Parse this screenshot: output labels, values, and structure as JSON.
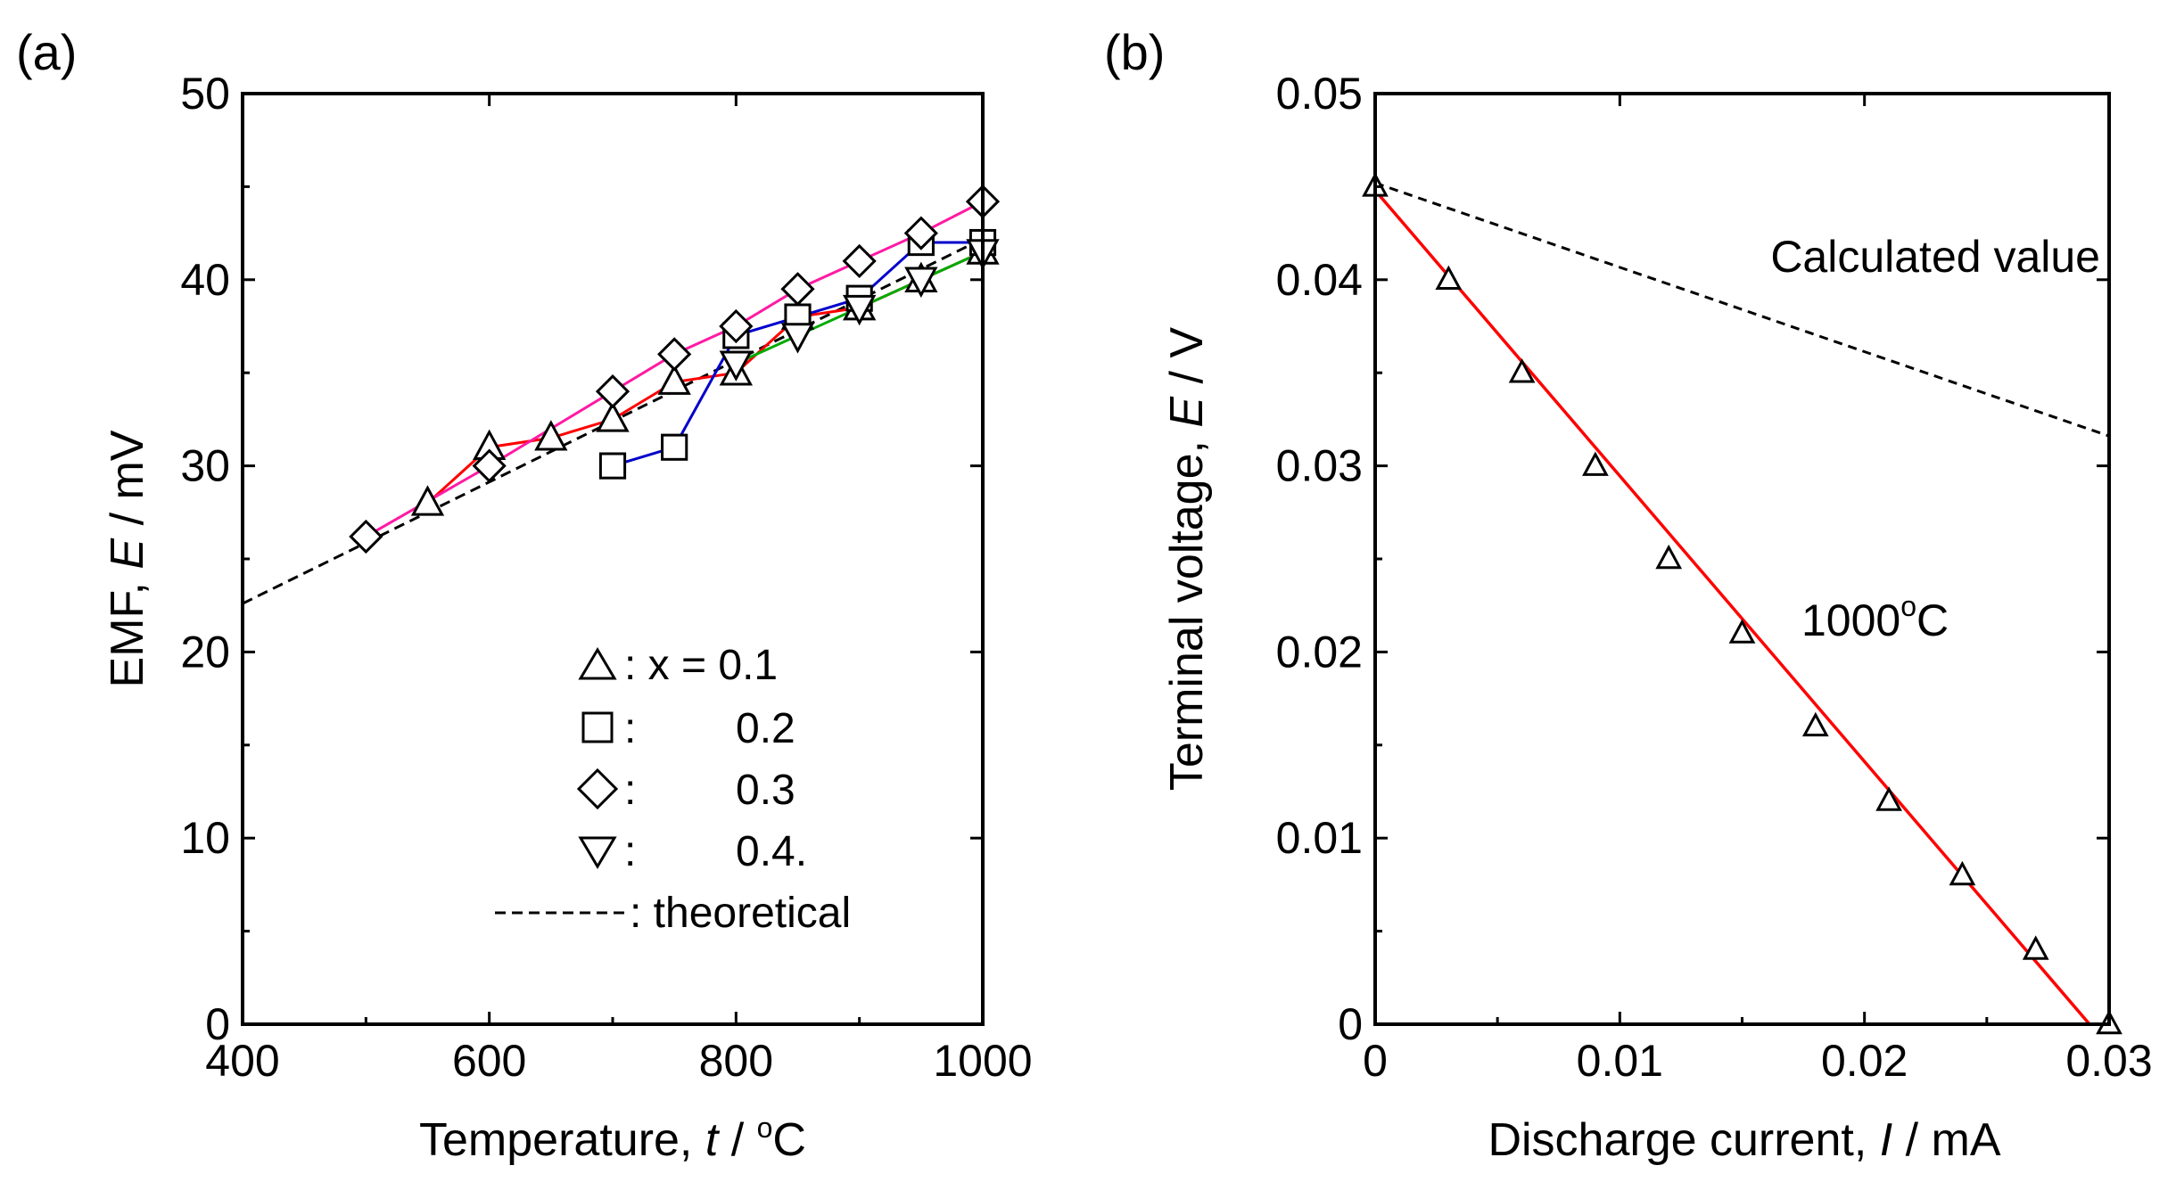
{
  "chart_data": [
    {
      "panel_label": "(a)",
      "type": "line",
      "xlabel_prefix": "Temperature, ",
      "xlabel_var": "t",
      "xlabel_sep": " / ",
      "xlabel_deg": "o",
      "xlabel_unit": "C",
      "ylabel_prefix": "EMF, ",
      "ylabel_var": "E",
      "ylabel_unit": " / mV",
      "xlim": [
        400,
        1000
      ],
      "ylim": [
        0,
        50
      ],
      "xticks": [
        400,
        600,
        800,
        1000
      ],
      "yticks": [
        0,
        10,
        20,
        30,
        40,
        50
      ],
      "series": [
        {
          "name": "x = 0.1",
          "marker": "triangle-up",
          "color": "#ff0000",
          "x": [
            550,
            600,
            650,
            700,
            750,
            800,
            850,
            900,
            950,
            1000
          ],
          "y": [
            28,
            31,
            31.5,
            32.5,
            34.5,
            35,
            38,
            38.5,
            40,
            41.5
          ]
        },
        {
          "name": "0.2",
          "marker": "square",
          "color": "#0000cc",
          "x": [
            700,
            750,
            800,
            850,
            900,
            950,
            1000
          ],
          "y": [
            30,
            31,
            37,
            38,
            39,
            42,
            42
          ]
        },
        {
          "name": "0.3",
          "marker": "diamond",
          "color": "#ff1aa3",
          "x": [
            500,
            600,
            700,
            750,
            800,
            850,
            900,
            950,
            1000
          ],
          "y": [
            26.2,
            30,
            34,
            36,
            37.5,
            39.5,
            41,
            42.5,
            44.2
          ]
        },
        {
          "name": "0.4.",
          "marker": "triangle-down",
          "color": "#00aa00",
          "x": [
            800,
            850,
            900,
            950,
            1000
          ],
          "y": [
            35.5,
            37,
            38.5,
            40,
            41.5
          ]
        }
      ],
      "theoretical": {
        "name": "theoretical",
        "x": [
          400,
          1000
        ],
        "y": [
          22.6,
          42.2
        ]
      },
      "legend": [
        {
          "symbol": "triangle-up",
          "prefix": ": x = ",
          "value": "0.1"
        },
        {
          "symbol": "square",
          "prefix": ":",
          "value": "0.2"
        },
        {
          "symbol": "diamond",
          "prefix": ":",
          "value": "0.3"
        },
        {
          "symbol": "triangle-down",
          "prefix": ":",
          "value": "0.4."
        },
        {
          "symbol": "dashed",
          "prefix": ": ",
          "value": "theoretical"
        }
      ]
    },
    {
      "panel_label": "(b)",
      "type": "scatter",
      "xlabel_prefix": "Discharge current, ",
      "xlabel_var": "I",
      "xlabel_unit": " / mA",
      "ylabel_prefix": "Terminal voltage, ",
      "ylabel_var": "E",
      "ylabel_unit": " / V",
      "xlim": [
        0,
        0.03
      ],
      "ylim": [
        0,
        0.05
      ],
      "xticks": [
        0,
        0.01,
        0.02,
        0.03
      ],
      "xtick_labels": [
        "0",
        "0.01",
        "0.02",
        "0.03"
      ],
      "yticks": [
        0,
        0.01,
        0.02,
        0.03,
        0.04,
        0.05
      ],
      "ytick_labels": [
        "0",
        "0.01",
        "0.02",
        "0.03",
        "0.04",
        "0.05"
      ],
      "measured": {
        "name": "1000°C",
        "marker": "triangle-up",
        "x": [
          0,
          0.003,
          0.006,
          0.009,
          0.012,
          0.015,
          0.018,
          0.021,
          0.024,
          0.027,
          0.03
        ],
        "y": [
          0.045,
          0.04,
          0.035,
          0.03,
          0.025,
          0.021,
          0.016,
          0.012,
          0.008,
          0.004,
          0
        ]
      },
      "fit_line": {
        "color": "#ff0000",
        "x": [
          0,
          0.0292
        ],
        "y": [
          0.0448,
          0
        ]
      },
      "calculated": {
        "name": "Calculated value",
        "x": [
          0,
          0.03
        ],
        "y": [
          0.0452,
          0.0316
        ]
      },
      "annotations": {
        "calculated_label": "Calculated value",
        "temp_prefix": "1000",
        "temp_deg": "o",
        "temp_unit": "C"
      }
    }
  ]
}
